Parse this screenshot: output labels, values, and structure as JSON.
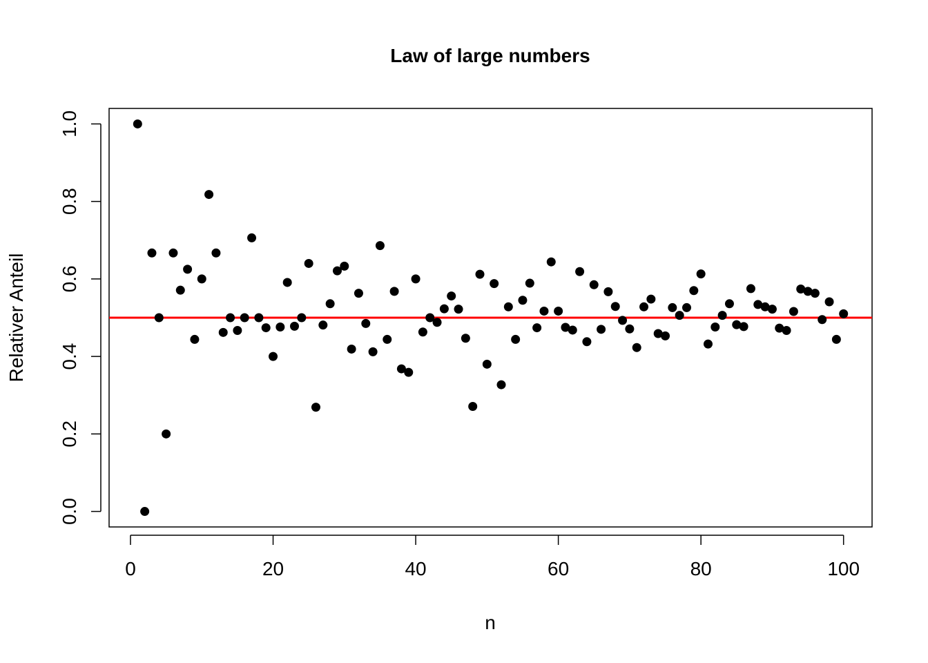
{
  "chart_data": {
    "type": "scatter",
    "title": "Law of large numbers",
    "xlabel": "n",
    "ylabel": "Relativer Anteil",
    "xlim": [
      -3,
      104
    ],
    "ylim": [
      -0.04,
      1.04
    ],
    "xticks": [
      0,
      20,
      40,
      60,
      80,
      100
    ],
    "yticks": [
      0.0,
      0.2,
      0.4,
      0.6,
      0.8,
      1.0
    ],
    "xtick_labels": [
      "0",
      "20",
      "40",
      "60",
      "80",
      "100"
    ],
    "ytick_labels": [
      "0.0",
      "0.2",
      "0.4",
      "0.6",
      "0.8",
      "1.0"
    ],
    "point_color": "#000000",
    "grid": false,
    "reference_line": {
      "y": 0.5,
      "color": "#ff0000"
    },
    "x": [
      1,
      2,
      3,
      4,
      5,
      6,
      7,
      8,
      9,
      10,
      11,
      12,
      13,
      14,
      15,
      16,
      17,
      18,
      19,
      20,
      21,
      22,
      23,
      24,
      25,
      26,
      27,
      28,
      29,
      30,
      31,
      32,
      33,
      34,
      35,
      36,
      37,
      38,
      39,
      40,
      41,
      42,
      43,
      44,
      45,
      46,
      47,
      48,
      49,
      50,
      51,
      52,
      53,
      54,
      55,
      56,
      57,
      58,
      59,
      60,
      61,
      62,
      63,
      64,
      65,
      66,
      67,
      68,
      69,
      70,
      71,
      72,
      73,
      74,
      75,
      76,
      77,
      78,
      79,
      80,
      81,
      82,
      83,
      84,
      85,
      86,
      87,
      88,
      89,
      90,
      91,
      92,
      93,
      94,
      95,
      96,
      97,
      98,
      99,
      100
    ],
    "y": [
      1.0,
      0.0,
      0.667,
      0.5,
      0.2,
      0.667,
      0.571,
      0.625,
      0.444,
      0.6,
      0.818,
      0.667,
      0.462,
      0.5,
      0.467,
      0.5,
      0.706,
      0.5,
      0.474,
      0.4,
      0.476,
      0.591,
      0.478,
      0.5,
      0.64,
      0.269,
      0.481,
      0.536,
      0.621,
      0.633,
      0.419,
      0.563,
      0.485,
      0.412,
      0.686,
      0.444,
      0.568,
      0.368,
      0.359,
      0.6,
      0.463,
      0.5,
      0.488,
      0.523,
      0.556,
      0.522,
      0.447,
      0.271,
      0.612,
      0.38,
      0.588,
      0.327,
      0.528,
      0.444,
      0.545,
      0.589,
      0.474,
      0.517,
      0.644,
      0.517,
      0.475,
      0.468,
      0.619,
      0.438,
      0.585,
      0.47,
      0.567,
      0.529,
      0.493,
      0.471,
      0.423,
      0.528,
      0.548,
      0.459,
      0.453,
      0.526,
      0.506,
      0.526,
      0.57,
      0.613,
      0.432,
      0.476,
      0.506,
      0.536,
      0.482,
      0.477,
      0.575,
      0.534,
      0.528,
      0.522,
      0.473,
      0.467,
      0.516,
      0.574,
      0.568,
      0.563,
      0.495,
      0.541,
      0.444,
      0.51
    ]
  }
}
